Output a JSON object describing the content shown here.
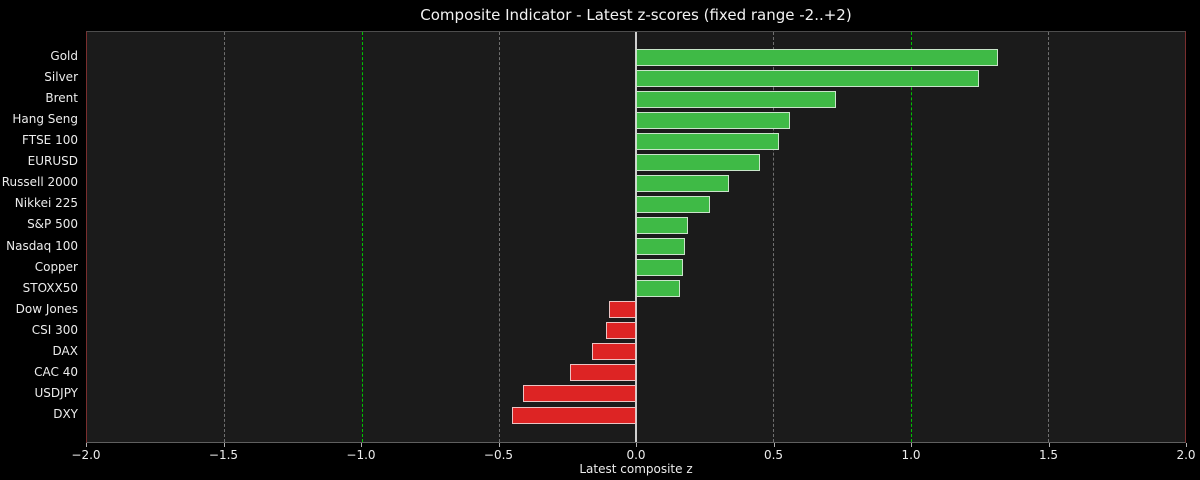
{
  "title": "Composite Indicator - Latest z-scores (fixed range -2..+2)",
  "chart_data": {
    "type": "bar",
    "orientation": "horizontal",
    "title": "Composite Indicator - Latest z-scores (fixed range -2..+2)",
    "xlabel": "Latest composite z",
    "ylabel": "",
    "xlim": [
      -2.0,
      2.0
    ],
    "categories": [
      "Gold",
      "Silver",
      "Brent",
      "Hang Seng",
      "FTSE 100",
      "EURUSD",
      "Russell 2000",
      "Nikkei 225",
      "S&P 500",
      "Nasdaq 100",
      "Copper",
      "STOXX50",
      "Dow Jones",
      "CSI 300",
      "DAX",
      "CAC 40",
      "USDJPY",
      "DXY"
    ],
    "values": [
      1.32,
      1.25,
      0.73,
      0.56,
      0.52,
      0.45,
      0.34,
      0.27,
      0.19,
      0.18,
      0.17,
      0.16,
      -0.1,
      -0.11,
      -0.16,
      -0.24,
      -0.41,
      -0.45
    ],
    "xticks": [
      -2.0,
      -1.5,
      -1.0,
      -0.5,
      0.0,
      0.5,
      1.0,
      1.5,
      2.0
    ],
    "xtick_labels": [
      "−2.0",
      "−1.5",
      "−1.0",
      "−0.5",
      "0.0",
      "0.5",
      "1.0",
      "1.5",
      "2.0"
    ],
    "grid_x": [
      -1.5,
      -0.5,
      0.5,
      1.5
    ],
    "reference_lines_x": [
      -1.0,
      1.0
    ],
    "zero_line_x": 0.0,
    "legend": null,
    "colors": {
      "positive_bar": "#3fba46",
      "negative_bar": "#dd2424",
      "bar_edge": "rgba(240,240,240,0.78)",
      "reference_line": "#00c400",
      "grid_line": "#6f6f6f",
      "zero_line": "#cfcfcf",
      "plot_background": "#1b1b1b",
      "figure_background": "#000000",
      "text": "#ececec"
    }
  }
}
